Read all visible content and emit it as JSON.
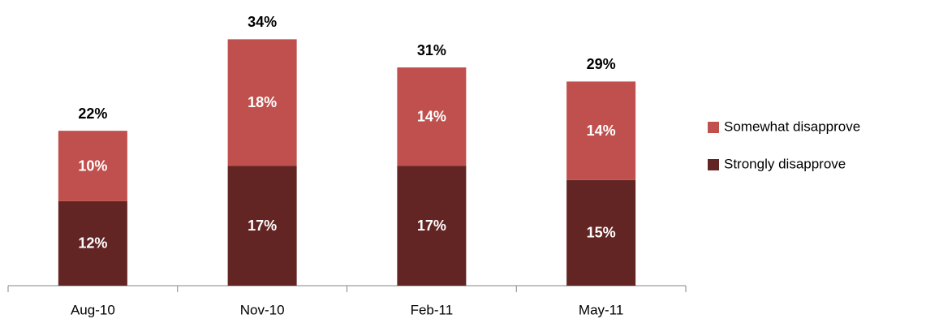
{
  "chart_data": {
    "type": "stacked_bar",
    "categories": [
      "Aug-10",
      "Nov-10",
      "Feb-11",
      "May-11"
    ],
    "series": [
      {
        "name": "Strongly disapprove",
        "color": "#632523",
        "values": [
          12,
          17,
          17,
          15
        ],
        "value_labels": [
          "12%",
          "17%",
          "17%",
          "15%"
        ]
      },
      {
        "name": "Somewhat disapprove",
        "color": "#c0504d",
        "values": [
          10,
          18,
          14,
          14
        ],
        "value_labels": [
          "10%",
          "18%",
          "14%",
          "14%"
        ]
      }
    ],
    "totals": {
      "values": [
        22,
        34,
        31,
        29
      ],
      "value_labels": [
        "22%",
        "34%",
        "31%",
        "29%"
      ]
    },
    "ylim": [
      0,
      40
    ],
    "legend": "right"
  }
}
